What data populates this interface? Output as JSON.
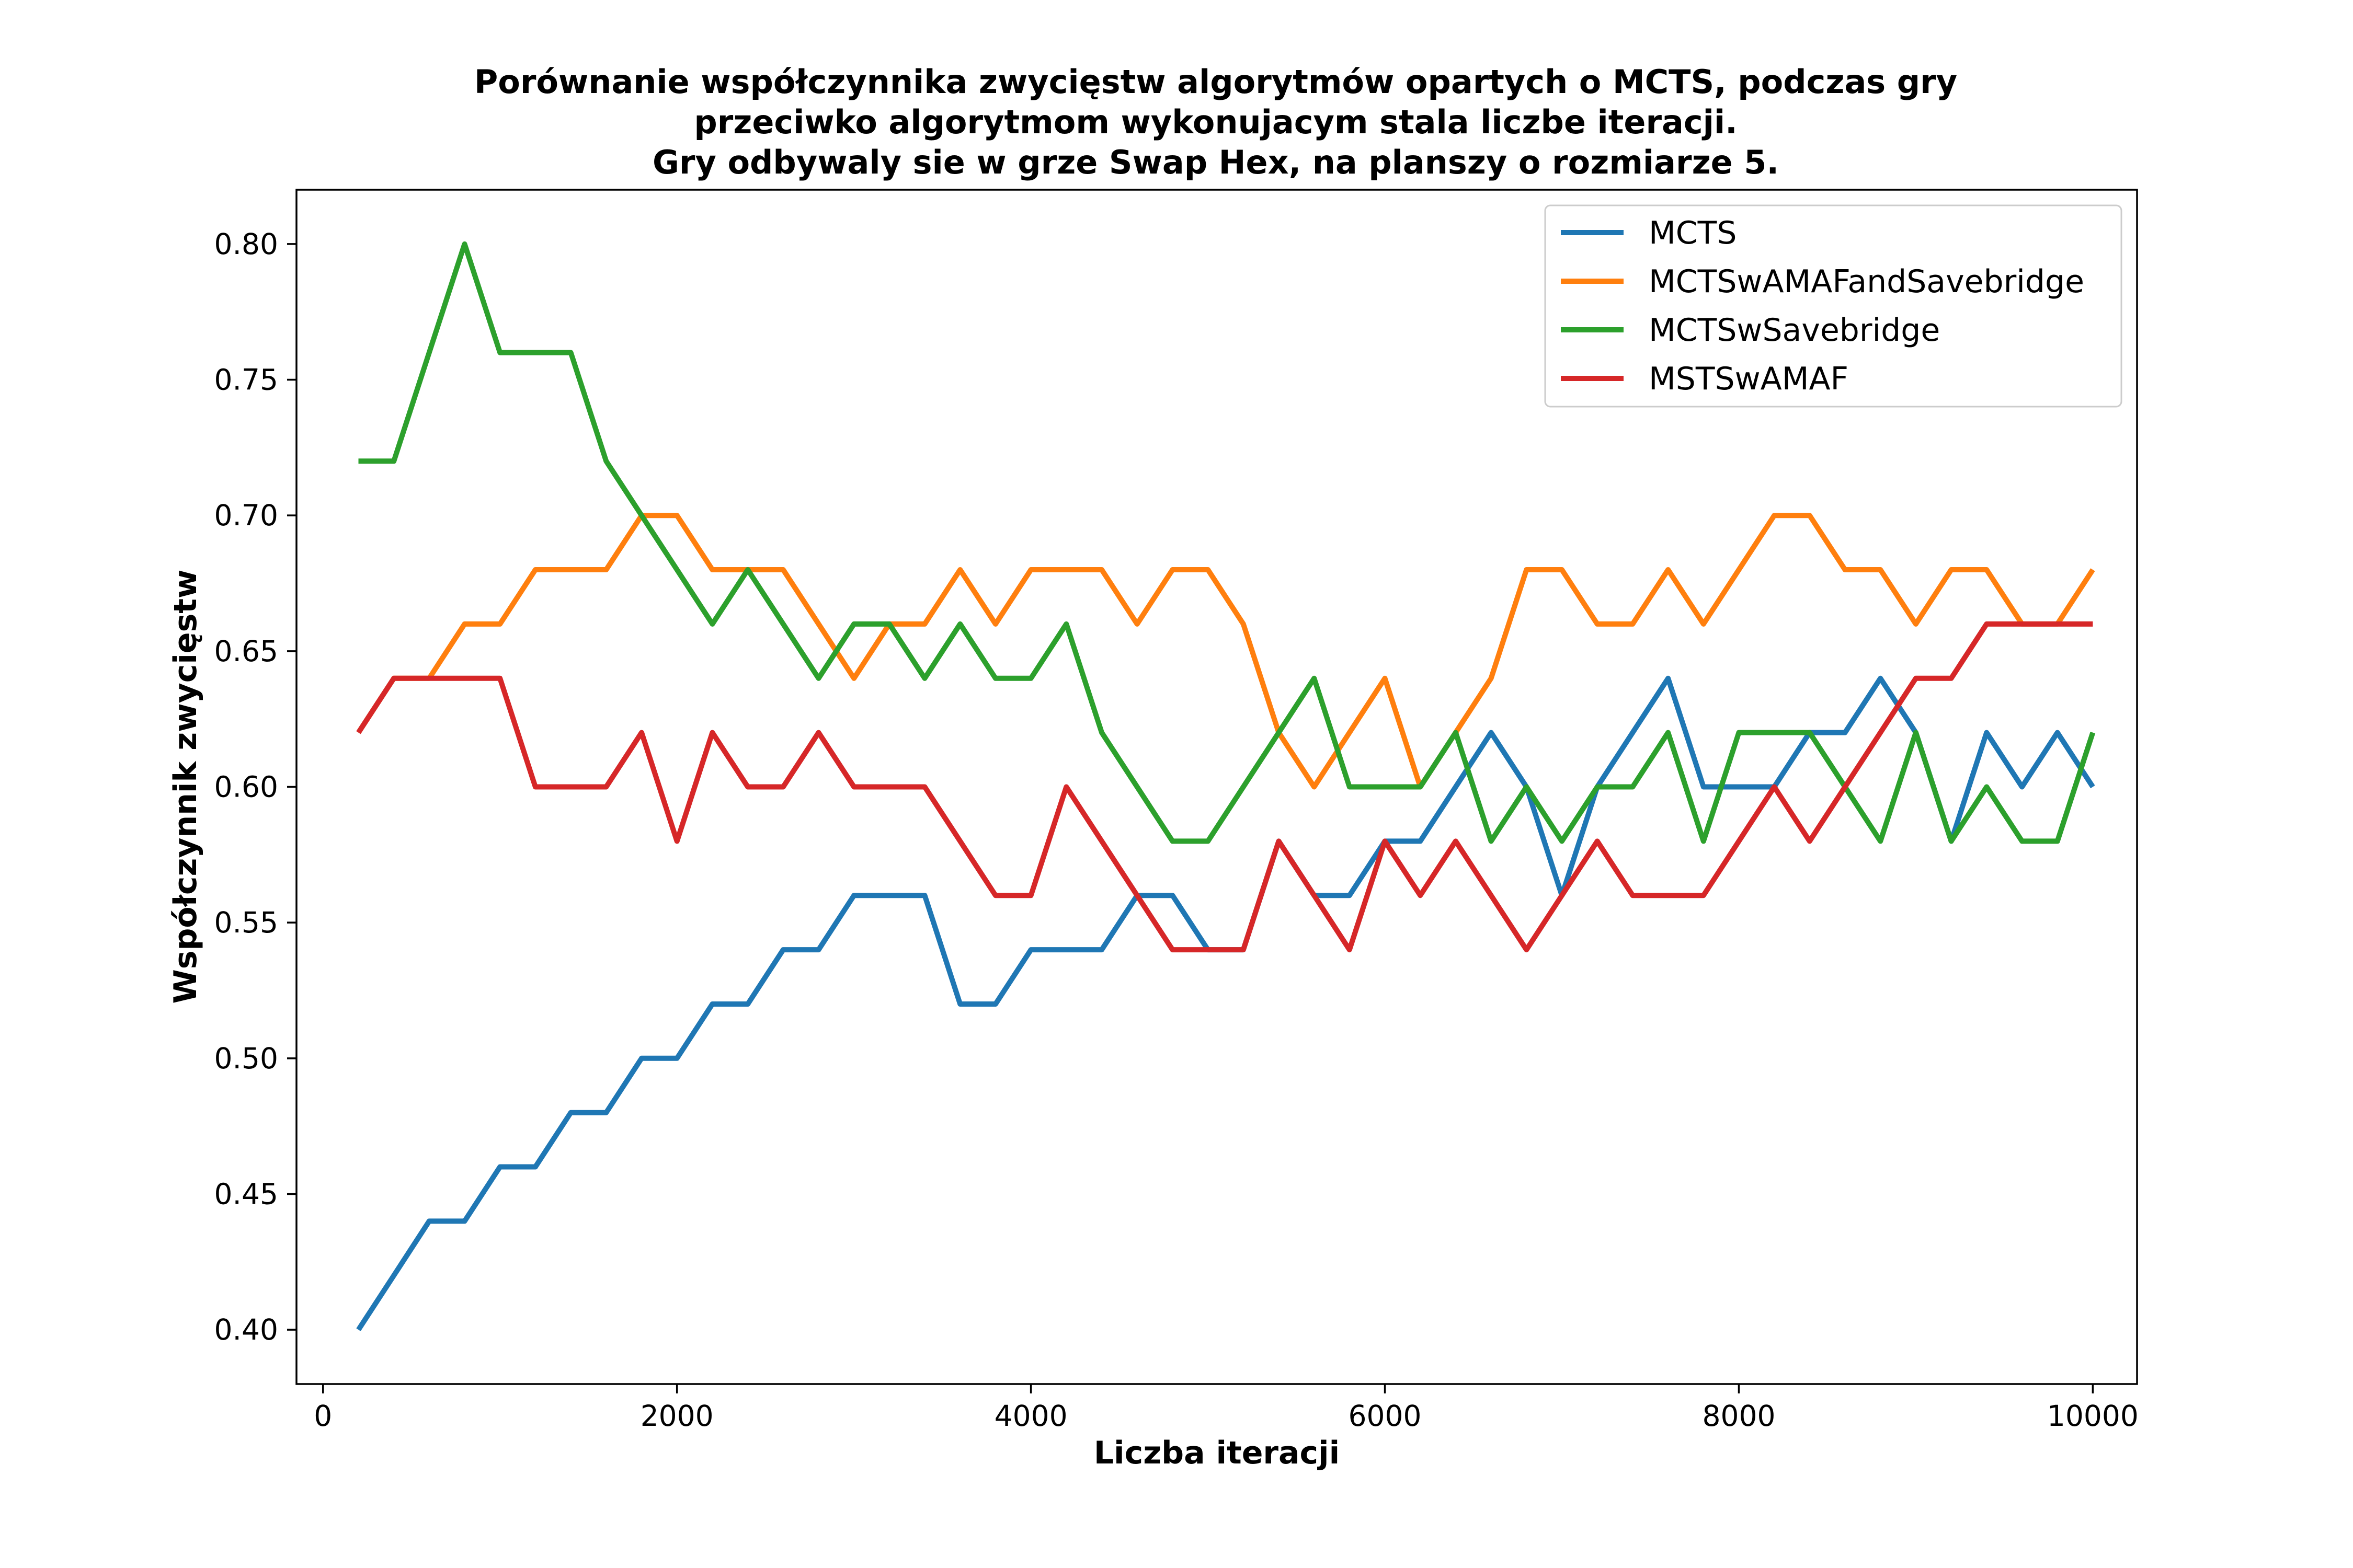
{
  "chart_data": {
    "type": "line",
    "title_lines": [
      "Porównanie współczynnika zwycięstw algorytmów opartych o MCTS, podczas gry",
      "przeciwko algorytmom wykonujacym stala liczbe iteracji.",
      "Gry odbywaly sie w grze Swap Hex, na planszy o rozmiarze 5."
    ],
    "xlabel": "Liczba iteracji",
    "ylabel": "Współczynnik zwycięstw",
    "xlim": [
      -150,
      10250
    ],
    "ylim": [
      0.38,
      0.82
    ],
    "xticks": [
      0,
      2000,
      4000,
      6000,
      8000,
      10000
    ],
    "xtick_labels": [
      "0",
      "2000",
      "4000",
      "6000",
      "8000",
      "10000"
    ],
    "yticks": [
      0.4,
      0.45,
      0.5,
      0.55,
      0.6,
      0.65,
      0.7,
      0.75,
      0.8
    ],
    "ytick_labels": [
      "0.40",
      "0.45",
      "0.50",
      "0.55",
      "0.60",
      "0.65",
      "0.70",
      "0.75",
      "0.80"
    ],
    "grid": false,
    "legend_position": "top-right",
    "x": [
      200,
      400,
      600,
      800,
      1000,
      1200,
      1400,
      1600,
      1800,
      2000,
      2200,
      2400,
      2600,
      2800,
      3000,
      3200,
      3400,
      3600,
      3800,
      4000,
      4200,
      4400,
      4600,
      4800,
      5000,
      5200,
      5400,
      5600,
      5800,
      6000,
      6200,
      6400,
      6600,
      6800,
      7000,
      7200,
      7400,
      7600,
      7800,
      8000,
      8200,
      8400,
      8600,
      8800,
      9000,
      9200,
      9400,
      9600,
      9800,
      10000
    ],
    "series": [
      {
        "name": "MCTS",
        "color": "#1f77b4",
        "values": [
          0.4,
          0.42,
          0.44,
          0.44,
          0.46,
          0.46,
          0.48,
          0.48,
          0.5,
          0.5,
          0.52,
          0.52,
          0.54,
          0.54,
          0.56,
          0.56,
          0.56,
          0.52,
          0.52,
          0.54,
          0.54,
          0.54,
          0.56,
          0.56,
          0.54,
          0.54,
          0.58,
          0.56,
          0.56,
          0.58,
          0.58,
          0.6,
          0.62,
          0.6,
          0.56,
          0.6,
          0.62,
          0.64,
          0.6,
          0.6,
          0.6,
          0.62,
          0.62,
          0.64,
          0.62,
          0.58,
          0.62,
          0.6,
          0.62,
          0.6
        ]
      },
      {
        "name": "MCTSwAMAFandSavebridge",
        "color": "#ff7f0e",
        "values": [
          0.62,
          0.64,
          0.64,
          0.66,
          0.66,
          0.68,
          0.68,
          0.68,
          0.7,
          0.7,
          0.68,
          0.68,
          0.68,
          0.66,
          0.64,
          0.66,
          0.66,
          0.68,
          0.66,
          0.68,
          0.68,
          0.68,
          0.66,
          0.68,
          0.68,
          0.66,
          0.62,
          0.6,
          0.62,
          0.64,
          0.6,
          0.62,
          0.64,
          0.68,
          0.68,
          0.66,
          0.66,
          0.68,
          0.66,
          0.68,
          0.7,
          0.7,
          0.68,
          0.68,
          0.66,
          0.68,
          0.68,
          0.66,
          0.66,
          0.68
        ]
      },
      {
        "name": "MCTSwSavebridge",
        "color": "#2ca02c",
        "values": [
          0.72,
          0.72,
          0.76,
          0.8,
          0.76,
          0.76,
          0.76,
          0.72,
          0.7,
          0.68,
          0.66,
          0.68,
          0.66,
          0.64,
          0.66,
          0.66,
          0.64,
          0.66,
          0.64,
          0.64,
          0.66,
          0.62,
          0.6,
          0.58,
          0.58,
          0.6,
          0.62,
          0.64,
          0.6,
          0.6,
          0.6,
          0.62,
          0.58,
          0.6,
          0.58,
          0.6,
          0.6,
          0.62,
          0.58,
          0.62,
          0.62,
          0.62,
          0.6,
          0.58,
          0.62,
          0.58,
          0.6,
          0.58,
          0.58,
          0.62
        ]
      },
      {
        "name": "MSTSwAMAF",
        "color": "#d62728",
        "values": [
          0.62,
          0.64,
          0.64,
          0.64,
          0.64,
          0.6,
          0.6,
          0.6,
          0.62,
          0.58,
          0.62,
          0.6,
          0.6,
          0.62,
          0.6,
          0.6,
          0.6,
          0.58,
          0.56,
          0.56,
          0.6,
          0.58,
          0.56,
          0.54,
          0.54,
          0.54,
          0.58,
          0.56,
          0.54,
          0.58,
          0.56,
          0.58,
          0.56,
          0.54,
          0.56,
          0.58,
          0.56,
          0.56,
          0.56,
          0.58,
          0.6,
          0.58,
          0.6,
          0.62,
          0.64,
          0.64,
          0.66,
          0.66,
          0.66,
          0.66
        ]
      }
    ]
  }
}
